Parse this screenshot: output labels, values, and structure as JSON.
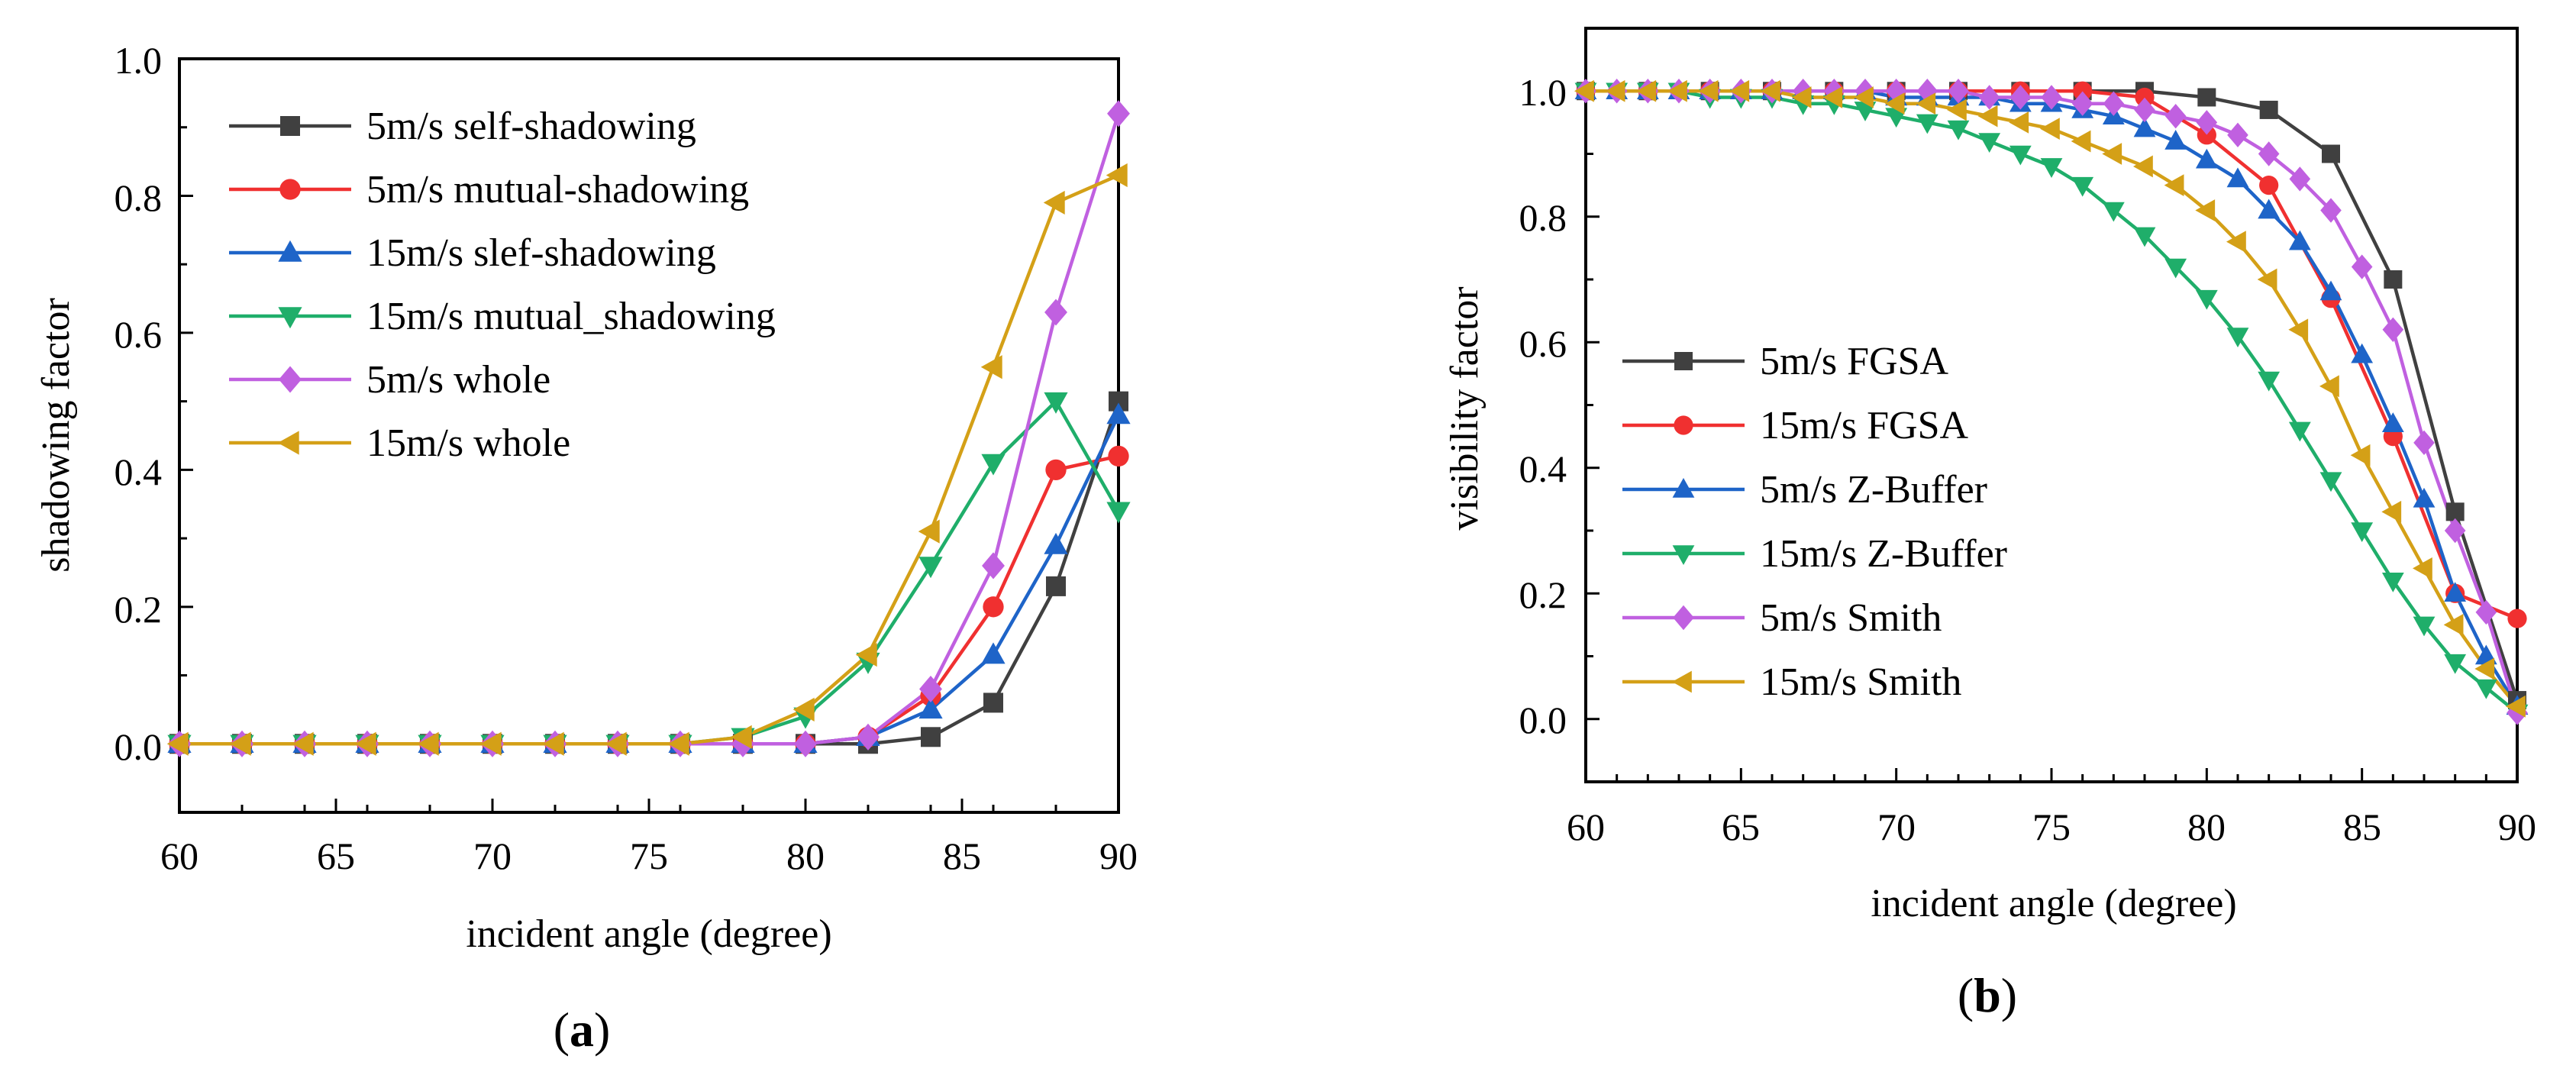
{
  "chart_data": [
    {
      "panel": "a",
      "type": "line",
      "xlabel": "incident angle (degree)",
      "ylabel": "shadowing factor",
      "xlim": [
        60,
        90
      ],
      "ylim": [
        -0.1,
        1.0
      ],
      "xticks": [
        60,
        65,
        70,
        75,
        80,
        85,
        90
      ],
      "yticks": [
        0.0,
        0.2,
        0.4,
        0.6,
        0.8,
        1.0
      ],
      "ytick_labels": [
        "0.0",
        "0.2",
        "0.4",
        "0.6",
        "0.8",
        "1.0"
      ],
      "x": [
        60,
        62,
        64,
        66,
        68,
        70,
        72,
        74,
        76,
        78,
        80,
        82,
        84,
        86,
        88,
        90
      ],
      "legend_position": "upper-left",
      "series": [
        {
          "name": "5m/s self-shadowing",
          "color": "#404040",
          "marker": "square",
          "values": [
            0,
            0,
            0,
            0,
            0,
            0,
            0,
            0,
            0,
            0,
            0.0,
            0.0,
            0.01,
            0.06,
            0.23,
            0.5
          ]
        },
        {
          "name": "5m/s mutual-shadowing",
          "color": "#f03030",
          "marker": "circle",
          "values": [
            0,
            0,
            0,
            0,
            0,
            0,
            0,
            0,
            0,
            0,
            0.0,
            0.01,
            0.07,
            0.2,
            0.4,
            0.42
          ]
        },
        {
          "name": "15m/s slef-shadowing",
          "color": "#1e64c8",
          "marker": "triangle-up",
          "values": [
            0,
            0,
            0,
            0,
            0,
            0,
            0,
            0,
            0,
            0,
            0.0,
            0.01,
            0.05,
            0.13,
            0.29,
            0.48
          ]
        },
        {
          "name": "15m/s mutual_shadowing",
          "color": "#1fae6a",
          "marker": "triangle-down",
          "values": [
            0,
            0,
            0,
            0,
            0,
            0,
            0,
            0,
            0,
            0.01,
            0.04,
            0.12,
            0.26,
            0.41,
            0.5,
            0.34
          ]
        },
        {
          "name": "5m/s whole",
          "color": "#c060e0",
          "marker": "diamond",
          "values": [
            0,
            0,
            0,
            0,
            0,
            0,
            0,
            0,
            0,
            0,
            0.0,
            0.01,
            0.08,
            0.26,
            0.63,
            0.92
          ]
        },
        {
          "name": "15m/s whole",
          "color": "#d4a017",
          "marker": "triangle-left",
          "values": [
            0,
            0,
            0,
            0,
            0,
            0,
            0,
            0,
            0,
            0.01,
            0.05,
            0.13,
            0.31,
            0.55,
            0.79,
            0.83
          ]
        }
      ]
    },
    {
      "panel": "b",
      "type": "line",
      "xlabel": "incident angle (degree)",
      "ylabel": "visibility factor",
      "xlim": [
        60,
        90
      ],
      "ylim": [
        -0.1,
        1.1
      ],
      "xticks": [
        60,
        65,
        70,
        75,
        80,
        85,
        90
      ],
      "yticks": [
        0.0,
        0.2,
        0.4,
        0.6,
        0.8,
        1.0
      ],
      "ytick_labels": [
        "0.0",
        "0.2",
        "0.4",
        "0.6",
        "0.8",
        "1.0"
      ],
      "legend_position": "lower-left",
      "series": [
        {
          "name": "5m/s FGSA",
          "color": "#404040",
          "marker": "square",
          "x": [
            60,
            62,
            64,
            66,
            68,
            70,
            72,
            74,
            76,
            78,
            80,
            82,
            84,
            86,
            88,
            90
          ],
          "values": [
            1.0,
            1.0,
            1.0,
            1.0,
            1.0,
            1.0,
            1.0,
            1.0,
            1.0,
            1.0,
            0.99,
            0.97,
            0.9,
            0.7,
            0.33,
            0.03
          ]
        },
        {
          "name": "15m/s FGSA",
          "color": "#f03030",
          "marker": "circle",
          "x": [
            60,
            62,
            64,
            66,
            68,
            70,
            72,
            74,
            76,
            78,
            80,
            82,
            84,
            86,
            88,
            90
          ],
          "values": [
            1.0,
            1.0,
            1.0,
            1.0,
            1.0,
            1.0,
            1.0,
            1.0,
            1.0,
            0.99,
            0.93,
            0.85,
            0.67,
            0.45,
            0.2,
            0.16
          ]
        },
        {
          "name": "5m/s Z-Buffer",
          "color": "#1e64c8",
          "marker": "triangle-up",
          "x": [
            60,
            61,
            62,
            63,
            64,
            65,
            66,
            67,
            68,
            69,
            70,
            71,
            72,
            73,
            74,
            75,
            76,
            77,
            78,
            79,
            80,
            81,
            82,
            83,
            84,
            85,
            86,
            87,
            88,
            89,
            90
          ],
          "values": [
            1.0,
            1.0,
            1.0,
            1.0,
            1.0,
            1.0,
            1.0,
            1.0,
            1.0,
            1.0,
            0.99,
            0.99,
            0.99,
            0.99,
            0.98,
            0.98,
            0.97,
            0.96,
            0.94,
            0.92,
            0.89,
            0.86,
            0.81,
            0.76,
            0.68,
            0.58,
            0.47,
            0.35,
            0.2,
            0.1,
            0.02
          ]
        },
        {
          "name": "15m/s Z-Buffer",
          "color": "#1fae6a",
          "marker": "triangle-down",
          "x": [
            60,
            61,
            62,
            63,
            64,
            65,
            66,
            67,
            68,
            69,
            70,
            71,
            72,
            73,
            74,
            75,
            76,
            77,
            78,
            79,
            80,
            81,
            82,
            83,
            84,
            85,
            86,
            87,
            88,
            89,
            90
          ],
          "values": [
            1.0,
            1.0,
            1.0,
            1.0,
            0.99,
            0.99,
            0.99,
            0.98,
            0.98,
            0.97,
            0.96,
            0.95,
            0.94,
            0.92,
            0.9,
            0.88,
            0.85,
            0.81,
            0.77,
            0.72,
            0.67,
            0.61,
            0.54,
            0.46,
            0.38,
            0.3,
            0.22,
            0.15,
            0.09,
            0.05,
            0.01
          ]
        },
        {
          "name": "5m/s Smith",
          "color": "#c060e0",
          "marker": "diamond",
          "x": [
            60,
            61,
            62,
            63,
            64,
            65,
            66,
            67,
            68,
            69,
            70,
            71,
            72,
            73,
            74,
            75,
            76,
            77,
            78,
            79,
            80,
            81,
            82,
            83,
            84,
            85,
            86,
            87,
            88,
            89,
            90
          ],
          "values": [
            1.0,
            1.0,
            1.0,
            1.0,
            1.0,
            1.0,
            1.0,
            1.0,
            1.0,
            1.0,
            1.0,
            1.0,
            1.0,
            0.99,
            0.99,
            0.99,
            0.98,
            0.98,
            0.97,
            0.96,
            0.95,
            0.93,
            0.9,
            0.86,
            0.81,
            0.72,
            0.62,
            0.44,
            0.3,
            0.17,
            0.01
          ]
        },
        {
          "name": "15m/s Smith",
          "color": "#d4a017",
          "marker": "triangle-left",
          "x": [
            60,
            61,
            62,
            63,
            64,
            65,
            66,
            67,
            68,
            69,
            70,
            71,
            72,
            73,
            74,
            75,
            76,
            77,
            78,
            79,
            80,
            81,
            82,
            83,
            84,
            85,
            86,
            87,
            88,
            89,
            90
          ],
          "values": [
            1.0,
            1.0,
            1.0,
            1.0,
            1.0,
            1.0,
            1.0,
            0.99,
            0.99,
            0.99,
            0.98,
            0.98,
            0.97,
            0.96,
            0.95,
            0.94,
            0.92,
            0.9,
            0.88,
            0.85,
            0.81,
            0.76,
            0.7,
            0.62,
            0.53,
            0.42,
            0.33,
            0.24,
            0.15,
            0.08,
            0.02
          ]
        }
      ]
    }
  ],
  "captions": {
    "a_open": "(",
    "a_letter": "a",
    "a_close": ")",
    "b_open": "(",
    "b_letter": "b",
    "b_close": ")"
  }
}
